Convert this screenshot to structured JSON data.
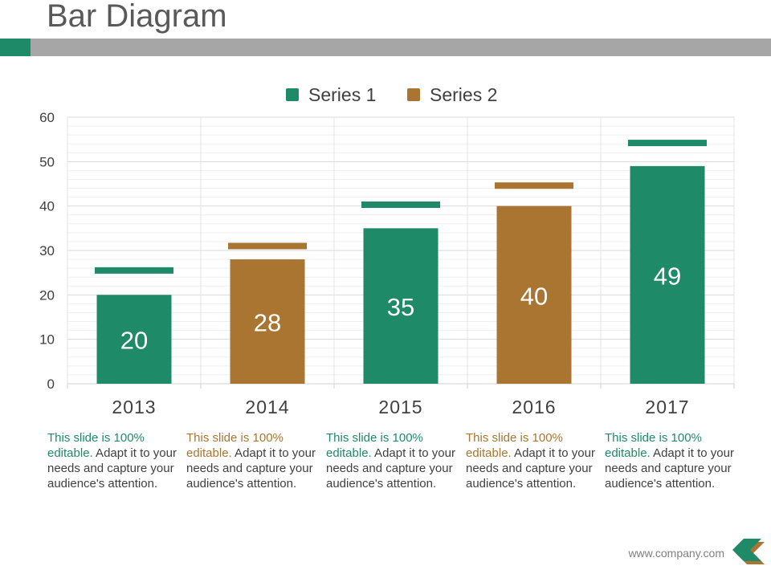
{
  "slide": {
    "title": "Bar Diagram",
    "footer_url": "www.company.com"
  },
  "colors": {
    "series1": "#1f8a68",
    "series2": "#a97531",
    "title_bar": "#a6a6a6",
    "text": "#404040"
  },
  "chart_data": {
    "type": "bar",
    "title": "",
    "xlabel": "",
    "ylabel": "",
    "ylim": [
      0,
      60
    ],
    "yticks": [
      0,
      10,
      20,
      30,
      40,
      50,
      60
    ],
    "grid": true,
    "legend_position": "top-center",
    "legend": [
      "Series 1",
      "Series 2"
    ],
    "categories": [
      "2013",
      "2014",
      "2015",
      "2016",
      "2017"
    ],
    "bar_series": [
      1,
      2,
      1,
      2,
      1
    ],
    "values": [
      20,
      28,
      35,
      40,
      49
    ],
    "marker_values": [
      25.5,
      31,
      40.3,
      44.6,
      54.2
    ],
    "data_labels": [
      "20",
      "28",
      "35",
      "40",
      "49"
    ]
  },
  "captions": [
    {
      "highlight": "This slide is 100% editable.",
      "rest": " Adapt it to your needs and capture your audience's attention."
    },
    {
      "highlight": "This slide is 100% editable.",
      "rest": " Adapt it to your needs and capture your audience's attention."
    },
    {
      "highlight": "This slide is 100% editable.",
      "rest": " Adapt it to your needs and capture your audience's attention."
    },
    {
      "highlight": "This slide is 100% editable.",
      "rest": " Adapt it to your needs and capture your audience's attention."
    },
    {
      "highlight": "This slide is 100% editable.",
      "rest": " Adapt it to your needs and capture your audience's attention."
    }
  ]
}
